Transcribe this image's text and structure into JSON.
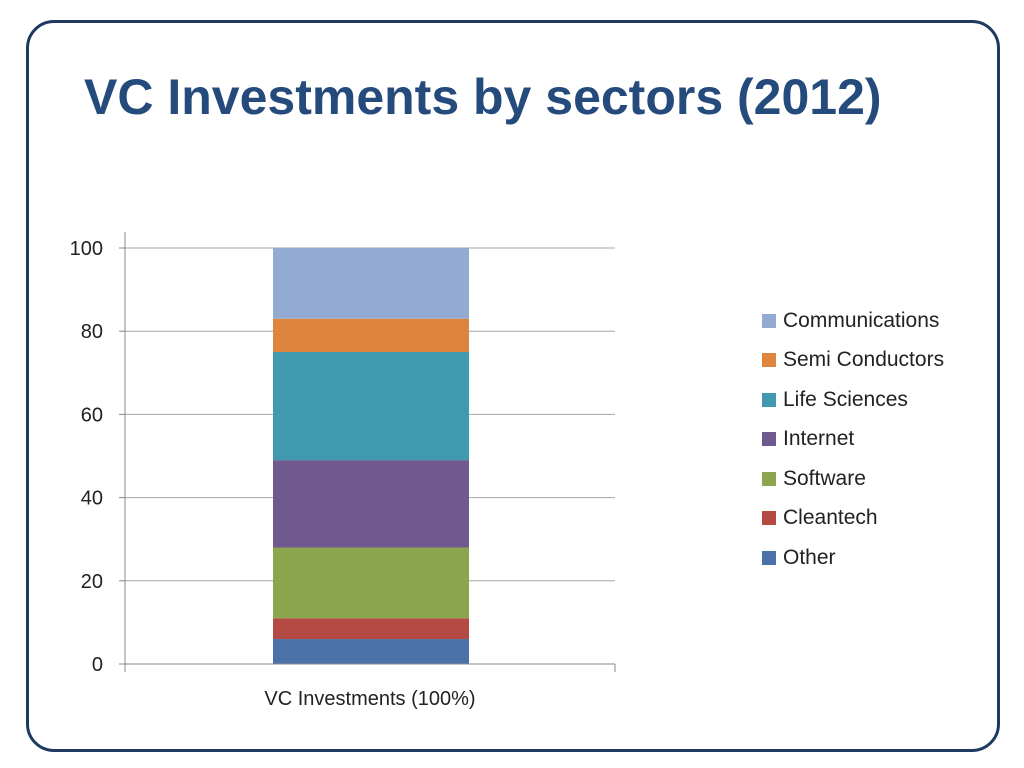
{
  "slide": {
    "title": "VC Investments by sectors (2012)"
  },
  "chart_data": {
    "type": "bar",
    "stacked": true,
    "categories": [
      "VC Investments (100%)"
    ],
    "ylim": [
      0,
      100
    ],
    "yticks": [
      0,
      20,
      40,
      60,
      80,
      100
    ],
    "grid": true,
    "legend_position": "right",
    "series": [
      {
        "name": "Other",
        "values": [
          6
        ],
        "color": "#4a72a8"
      },
      {
        "name": "Cleantech",
        "values": [
          5
        ],
        "color": "#b54a45"
      },
      {
        "name": "Software",
        "values": [
          17
        ],
        "color": "#8ba64f"
      },
      {
        "name": "Internet",
        "values": [
          21
        ],
        "color": "#70598f"
      },
      {
        "name": "Life Sciences",
        "values": [
          26
        ],
        "color": "#4199b0"
      },
      {
        "name": "Semi Conductors",
        "values": [
          8
        ],
        "color": "#dd853e"
      },
      {
        "name": "Communications",
        "values": [
          17
        ],
        "color": "#93abd3"
      }
    ],
    "legend_order": [
      "Communications",
      "Semi Conductors",
      "Life Sciences",
      "Internet",
      "Software",
      "Cleantech",
      "Other"
    ]
  }
}
